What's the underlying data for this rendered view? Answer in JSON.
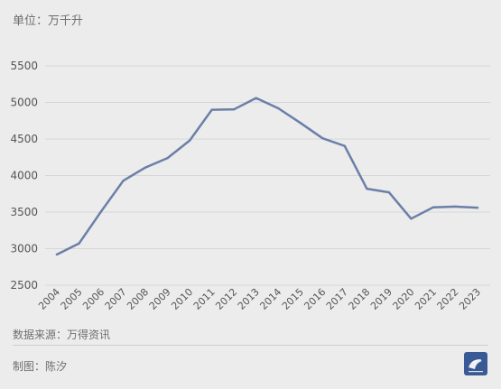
{
  "header": {
    "unit_label": "单位：万千升"
  },
  "footer": {
    "source": "数据来源：万得资讯",
    "author": "制图：陈汐"
  },
  "logo": {
    "icon": "publisher-logo-icon",
    "bg_color": "#3a5a95"
  },
  "colors": {
    "line": "#6b7fa8",
    "grid": "#d6d6d6",
    "tick_text": "#555555"
  },
  "chart_data": {
    "type": "line",
    "title": "",
    "xlabel": "",
    "ylabel": "",
    "x": [
      "2004",
      "2005",
      "2006",
      "2007",
      "2008",
      "2009",
      "2010",
      "2011",
      "2012",
      "2013",
      "2014",
      "2015",
      "2016",
      "2017",
      "2018",
      "2019",
      "2020",
      "2021",
      "2022",
      "2023"
    ],
    "series": [
      {
        "values": [
          2920,
          3070,
          3510,
          3930,
          4110,
          4240,
          4480,
          4900,
          4905,
          5060,
          4920,
          4720,
          4510,
          4405,
          3820,
          3770,
          3410,
          3565,
          3575,
          3560
        ]
      }
    ],
    "yticks": [
      "2500",
      "3000",
      "3500",
      "4000",
      "4500",
      "5000",
      "5500"
    ],
    "ylim": [
      2500,
      5500
    ],
    "grid": true,
    "legend": "none"
  }
}
